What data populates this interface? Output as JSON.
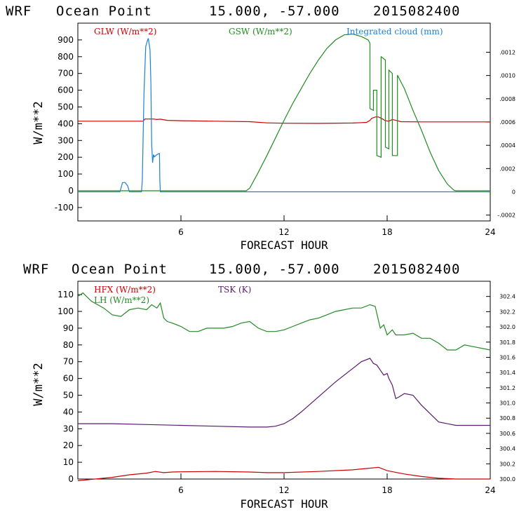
{
  "chart_data": [
    {
      "type": "line",
      "header": {
        "model": "WRF",
        "location": "Ocean Point",
        "coords": "15.000, -57.000",
        "date": "2015082400"
      },
      "xlabel": "FORECAST HOUR",
      "ylabel": "W/m**2",
      "xlim": [
        0,
        24
      ],
      "ylim": [
        -180,
        1000
      ],
      "xticks": [
        "6",
        "12",
        "18",
        "24"
      ],
      "yticks": [
        "-100",
        "0",
        "100",
        "200",
        "300",
        "400",
        "500",
        "600",
        "700",
        "800",
        "900"
      ],
      "right_ylim": [
        -0.00025,
        0.00145
      ],
      "right_yticks": [
        "-.0002",
        "0",
        ".0002",
        ".0004",
        ".0006",
        ".0008",
        ".0010",
        ".0012"
      ],
      "series": [
        {
          "name": "GLW (W/m**2)",
          "color": "#cc0000",
          "axis": "left",
          "x": [
            0,
            3.8,
            3.9,
            4.4,
            4.6,
            4.8,
            5.2,
            6,
            8,
            10,
            11,
            12,
            14,
            16,
            16.8,
            17,
            17.1,
            17.3,
            17.5,
            17.7,
            17.9,
            18.1,
            18.3,
            18.5,
            18.8,
            20,
            22,
            24
          ],
          "values": [
            415,
            415,
            428,
            428,
            425,
            427,
            420,
            418,
            415,
            412,
            405,
            403,
            402,
            404,
            408,
            420,
            432,
            440,
            440,
            430,
            418,
            415,
            425,
            420,
            412,
            411,
            411,
            411
          ]
        },
        {
          "name": "GSW (W/m**2)",
          "color": "#228b22",
          "axis": "left",
          "x": [
            0,
            9.8,
            10,
            10.5,
            11,
            11.5,
            12,
            12.5,
            13,
            13.5,
            14,
            14.5,
            15,
            15.5,
            16,
            16.5,
            16.9,
            17.0,
            17.0,
            17.2,
            17.2,
            17.4,
            17.4,
            17.65,
            17.65,
            17.9,
            17.9,
            18.1,
            18.1,
            18.3,
            18.3,
            18.6,
            18.6,
            19,
            19.5,
            20,
            20.5,
            21,
            21.5,
            21.9,
            22,
            24
          ],
          "values": [
            0,
            0,
            15,
            110,
            210,
            315,
            420,
            520,
            610,
            700,
            780,
            850,
            900,
            930,
            935,
            920,
            900,
            880,
            490,
            480,
            600,
            600,
            210,
            200,
            800,
            780,
            260,
            250,
            720,
            700,
            210,
            210,
            690,
            610,
            480,
            360,
            230,
            120,
            40,
            2,
            0,
            0
          ]
        },
        {
          "name": "Integrated cloud (mm)",
          "color": "#1e7fd6",
          "axis": "right",
          "x": [
            0,
            2.45,
            2.6,
            2.75,
            2.9,
            3.0,
            3.7,
            3.75,
            3.85,
            3.95,
            4.05,
            4.1,
            4.2,
            4.25,
            4.3,
            4.35,
            4.4,
            4.45,
            4.6,
            4.75,
            4.77,
            4.8,
            4.85,
            5.0,
            24
          ],
          "values": [
            0,
            0,
            8e-05,
            8e-05,
            5e-05,
            0,
            0,
            0.0001,
            0.00085,
            0.00125,
            0.0013,
            0.00132,
            0.00122,
            0.00095,
            0.0004,
            0.00025,
            0.00032,
            0.0003,
            0.00032,
            0.00033,
            0.0001,
            0,
            0,
            0,
            0
          ]
        }
      ]
    },
    {
      "type": "line",
      "header": {
        "model": "WRF",
        "location": "Ocean Point",
        "coords": "15.000, -57.000",
        "date": "2015082400"
      },
      "xlabel": "FORECAST HOUR",
      "ylabel": "W/m**2",
      "xlim": [
        0,
        24
      ],
      "ylim": [
        0,
        118
      ],
      "xticks": [
        "6",
        "12",
        "18",
        "24"
      ],
      "yticks": [
        "0",
        "10",
        "20",
        "30",
        "40",
        "50",
        "60",
        "70",
        "80",
        "90",
        "100",
        "110"
      ],
      "right_ylim": [
        300.0,
        302.6
      ],
      "right_yticks": [
        "300.0",
        "300.2",
        "300.4",
        "300.6",
        "300.8",
        "301.0",
        "301.2",
        "301.4",
        "301.6",
        "301.8",
        "302.0",
        "302.2",
        "302.4"
      ],
      "series": [
        {
          "name": "HFX (W/m**2)",
          "color": "#cc0000",
          "axis": "left",
          "x": [
            0,
            1,
            2,
            3,
            4,
            4.5,
            5,
            5.5,
            6,
            8,
            10,
            11,
            12,
            14,
            16,
            17,
            17.5,
            18,
            19,
            20,
            21,
            22,
            24
          ],
          "values": [
            -1,
            0,
            1,
            2.5,
            3.5,
            4.5,
            3.8,
            4.2,
            4.3,
            4.5,
            4.2,
            3.8,
            3.8,
            4.5,
            5.5,
            6.5,
            7,
            5,
            3,
            1.5,
            0.5,
            0,
            0
          ]
        },
        {
          "name": "LH (W/m**2)",
          "color": "#228b22",
          "axis": "left",
          "x": [
            0,
            0.3,
            0.8,
            1.5,
            2,
            2.5,
            3,
            3.5,
            4,
            4.3,
            4.6,
            4.8,
            5,
            5.2,
            5.5,
            6,
            6.5,
            7,
            7.5,
            8,
            8.5,
            9,
            9.5,
            10,
            10.5,
            11,
            11.5,
            12,
            12.5,
            13,
            13.5,
            14,
            14.5,
            15,
            15.5,
            16,
            16.5,
            17,
            17.3,
            17.6,
            17.8,
            18,
            18.3,
            18.5,
            19,
            19.5,
            20,
            20.5,
            21,
            21.5,
            22,
            22.5,
            23,
            24
          ],
          "values": [
            109,
            111,
            106,
            102,
            98,
            97,
            101,
            102,
            101,
            104,
            102,
            105,
            96,
            94,
            93,
            91,
            88,
            88,
            90,
            90,
            90,
            91,
            93,
            94,
            90,
            88,
            88,
            89,
            91,
            93,
            95,
            96,
            98,
            100,
            101,
            102,
            102,
            104,
            103,
            90,
            92,
            86,
            89,
            86,
            86,
            87,
            84,
            84,
            81,
            77,
            77,
            80,
            79,
            77
          ]
        },
        {
          "name": "TSK (K)",
          "color": "#5a1a6e",
          "axis": "left",
          "x": [
            0,
            2,
            4,
            6,
            8,
            10,
            11,
            11.5,
            12,
            12.5,
            13,
            14,
            15,
            16,
            16.5,
            17,
            17.2,
            17.4,
            17.6,
            17.8,
            18,
            18.1,
            18.3,
            18.5,
            18.7,
            19,
            19.5,
            20,
            21,
            22,
            24
          ],
          "values": [
            33,
            33,
            32.5,
            32,
            31.5,
            31,
            31,
            31.5,
            33,
            36,
            40,
            49,
            58,
            66,
            70,
            72,
            69,
            68,
            65,
            62,
            63,
            60,
            56,
            48,
            49,
            51,
            50,
            44,
            34,
            32,
            32
          ]
        }
      ]
    }
  ]
}
